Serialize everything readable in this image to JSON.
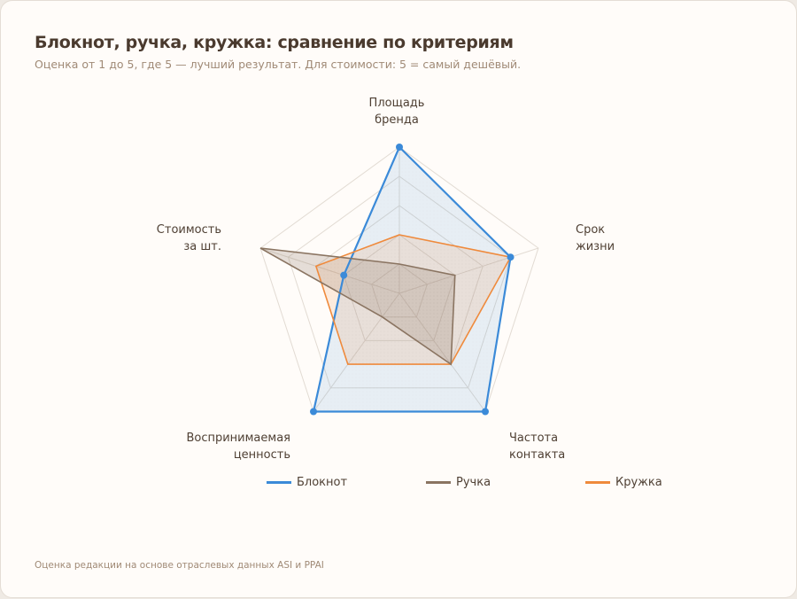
{
  "header": {
    "title": "Блокнот, ручка, кружка: сравнение по критериям",
    "subtitle": "Оценка от 1 до 5, где 5 — лучший результат. Для стоимости: 5 = самый дешёвый."
  },
  "footer": {
    "source": "Оценка редакции на основе отраслевых данных ASI и PPAI"
  },
  "axes": [
    {
      "line1": "Площадь",
      "line2": "бренда"
    },
    {
      "line1": "Срок",
      "line2": "жизни"
    },
    {
      "line1": "Частота",
      "line2": "контакта"
    },
    {
      "line1": "Воспринимаемая",
      "line2": "ценность"
    },
    {
      "line1": "Стоимость",
      "line2": "за шт."
    }
  ],
  "legend": [
    {
      "label": "Блокнот",
      "color": "#3b8ad8"
    },
    {
      "label": "Ручка",
      "color": "#8a7461"
    },
    {
      "label": "Кружка",
      "color": "#ef8a3c"
    }
  ],
  "chart_data": {
    "type": "radar",
    "title": "Блокнот, ручка, кружка: сравнение по критериям",
    "subtitle": "Оценка от 1 до 5, где 5 — лучший результат. Для стоимости: 5 = самый дешёвый.",
    "categories": [
      "Площадь бренда",
      "Срок жизни",
      "Частота контакта",
      "Воспринимаемая ценность",
      "Стоимость за шт."
    ],
    "series": [
      {
        "name": "Блокнот",
        "color": "#3b8ad8",
        "values": [
          5,
          4,
          5,
          5,
          2
        ]
      },
      {
        "name": "Ручка",
        "color": "#8a7461",
        "values": [
          1,
          2,
          3,
          1,
          5
        ]
      },
      {
        "name": "Кружка",
        "color": "#ef8a3c",
        "values": [
          2,
          4,
          3,
          3,
          3
        ]
      }
    ],
    "range": [
      0,
      5
    ],
    "grid_levels": 5,
    "legend_position": "bottom",
    "source": "Оценка редакции на основе отраслевых данных ASI и PPAI"
  }
}
